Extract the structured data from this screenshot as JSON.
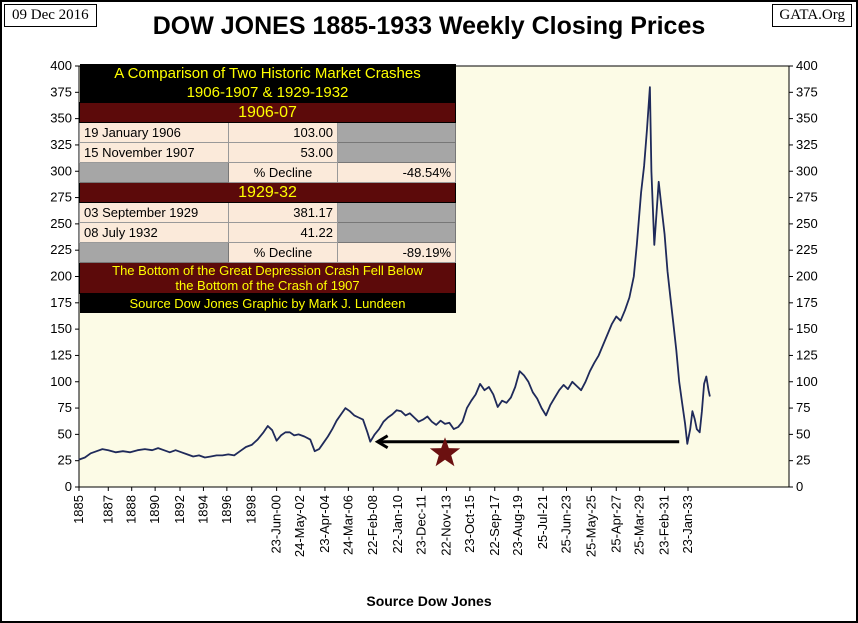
{
  "header": {
    "date": "09 Dec 2016",
    "title": "DOW JONES 1885-1933 Weekly Closing Prices",
    "source": "GATA.Org"
  },
  "panel": {
    "heading_line1": "A Comparison of Two Historic Market Crashes",
    "heading_line2": "1906-1907 & 1929-1932",
    "crash1": {
      "label": "1906-07",
      "row1_date": "19 January 1906",
      "row1_value": "103.00",
      "row2_date": "15 November 1907",
      "row2_value": "53.00",
      "decline_label": "% Decline",
      "decline_value": "-48.54%"
    },
    "crash2": {
      "label": "1929-32",
      "row1_date": "03 September 1929",
      "row1_value": "381.17",
      "row2_date": "08 July 1932",
      "row2_value": "41.22",
      "decline_label": "% Decline",
      "decline_value": "-89.19%"
    },
    "note_line1": "The Bottom of the Great Depression Crash Fell Below",
    "note_line2": "the Bottom of the Crash of 1907",
    "credit": "Source Dow Jones  Graphic by Mark J. Lundeen"
  },
  "chart_data": {
    "type": "line",
    "title": "DOW JONES 1885-1933 Weekly Closing Prices",
    "xlabel": "Source Dow Jones",
    "ylabel": "",
    "ylim": [
      0,
      400
    ],
    "yticks": [
      0,
      25,
      50,
      75,
      100,
      125,
      150,
      175,
      200,
      225,
      250,
      275,
      300,
      325,
      350,
      375,
      400
    ],
    "x_range": [
      1885.0,
      1933.5
    ],
    "x_tick_labels": [
      {
        "label": "1885",
        "x": 1885.0
      },
      {
        "label": "1887",
        "x": 1887.0
      },
      {
        "label": "1888",
        "x": 1888.6
      },
      {
        "label": "1890",
        "x": 1890.2
      },
      {
        "label": "1892",
        "x": 1891.9
      },
      {
        "label": "1894",
        "x": 1893.5
      },
      {
        "label": "1896",
        "x": 1895.1
      },
      {
        "label": "1898",
        "x": 1896.8
      },
      {
        "label": "23-Jun-00",
        "x": 1898.5
      },
      {
        "label": "24-May-02",
        "x": 1900.1
      },
      {
        "label": "23-Apr-04",
        "x": 1901.8
      },
      {
        "label": "24-Mar-06",
        "x": 1903.4
      },
      {
        "label": "22-Feb-08",
        "x": 1905.1
      },
      {
        "label": "22-Jan-10",
        "x": 1906.8
      },
      {
        "label": "23-Dec-11",
        "x": 1908.4
      },
      {
        "label": "22-Nov-13",
        "x": 1910.1
      },
      {
        "label": "23-Oct-15",
        "x": 1911.7
      },
      {
        "label": "22-Sep-17",
        "x": 1913.4
      },
      {
        "label": "23-Aug-19",
        "x": 1915.0
      },
      {
        "label": "25-Jul-21",
        "x": 1916.7
      },
      {
        "label": "25-Jun-23",
        "x": 1918.3
      },
      {
        "label": "25-May-25",
        "x": 1920.0
      },
      {
        "label": "25-Apr-27",
        "x": 1921.7
      },
      {
        "label": "25-Mar-29",
        "x": 1923.3
      },
      {
        "label": "23-Feb-31",
        "x": 1925.0
      },
      {
        "label": "23-Jan-33",
        "x": 1926.6
      }
    ],
    "series": [
      {
        "color": "#1f2a5a",
        "points": [
          [
            1885.0,
            26
          ],
          [
            1885.4,
            28
          ],
          [
            1885.8,
            32
          ],
          [
            1886.2,
            34
          ],
          [
            1886.6,
            36
          ],
          [
            1887.0,
            35
          ],
          [
            1887.5,
            33
          ],
          [
            1888.0,
            34
          ],
          [
            1888.5,
            33
          ],
          [
            1889.0,
            35
          ],
          [
            1889.5,
            36
          ],
          [
            1890.0,
            35
          ],
          [
            1890.4,
            37
          ],
          [
            1890.8,
            35
          ],
          [
            1891.2,
            33
          ],
          [
            1891.6,
            35
          ],
          [
            1892.0,
            33
          ],
          [
            1892.4,
            31
          ],
          [
            1892.8,
            29
          ],
          [
            1893.2,
            30
          ],
          [
            1893.6,
            28
          ],
          [
            1894.0,
            29
          ],
          [
            1894.4,
            30
          ],
          [
            1894.8,
            30
          ],
          [
            1895.2,
            31
          ],
          [
            1895.6,
            30
          ],
          [
            1896.0,
            34
          ],
          [
            1896.4,
            38
          ],
          [
            1896.8,
            40
          ],
          [
            1897.2,
            45
          ],
          [
            1897.6,
            52
          ],
          [
            1897.9,
            58
          ],
          [
            1898.2,
            54
          ],
          [
            1898.5,
            44
          ],
          [
            1898.8,
            49
          ],
          [
            1899.1,
            52
          ],
          [
            1899.4,
            52
          ],
          [
            1899.7,
            49
          ],
          [
            1900.0,
            50
          ],
          [
            1900.4,
            48
          ],
          [
            1900.8,
            45
          ],
          [
            1901.1,
            34
          ],
          [
            1901.4,
            36
          ],
          [
            1901.7,
            42
          ],
          [
            1902.0,
            48
          ],
          [
            1902.3,
            55
          ],
          [
            1902.6,
            63
          ],
          [
            1902.9,
            69
          ],
          [
            1903.2,
            75
          ],
          [
            1903.5,
            72
          ],
          [
            1903.8,
            68
          ],
          [
            1904.1,
            66
          ],
          [
            1904.4,
            64
          ],
          [
            1904.7,
            52
          ],
          [
            1904.9,
            43
          ],
          [
            1905.2,
            50
          ],
          [
            1905.5,
            55
          ],
          [
            1905.8,
            62
          ],
          [
            1906.1,
            66
          ],
          [
            1906.4,
            69
          ],
          [
            1906.7,
            73
          ],
          [
            1907.0,
            72
          ],
          [
            1907.3,
            68
          ],
          [
            1907.6,
            70
          ],
          [
            1907.9,
            66
          ],
          [
            1908.2,
            62
          ],
          [
            1908.5,
            64
          ],
          [
            1908.8,
            67
          ],
          [
            1909.1,
            62
          ],
          [
            1909.4,
            59
          ],
          [
            1909.7,
            63
          ],
          [
            1910.0,
            60
          ],
          [
            1910.3,
            61
          ],
          [
            1910.6,
            55
          ],
          [
            1910.9,
            57
          ],
          [
            1911.2,
            62
          ],
          [
            1911.5,
            75
          ],
          [
            1911.8,
            82
          ],
          [
            1912.1,
            88
          ],
          [
            1912.4,
            98
          ],
          [
            1912.7,
            92
          ],
          [
            1913.0,
            95
          ],
          [
            1913.3,
            88
          ],
          [
            1913.6,
            76
          ],
          [
            1913.9,
            82
          ],
          [
            1914.2,
            80
          ],
          [
            1914.5,
            85
          ],
          [
            1914.8,
            95
          ],
          [
            1915.1,
            110
          ],
          [
            1915.4,
            106
          ],
          [
            1915.7,
            100
          ],
          [
            1916.0,
            90
          ],
          [
            1916.3,
            84
          ],
          [
            1916.6,
            75
          ],
          [
            1916.9,
            68
          ],
          [
            1917.2,
            78
          ],
          [
            1917.5,
            85
          ],
          [
            1917.8,
            92
          ],
          [
            1918.1,
            97
          ],
          [
            1918.4,
            93
          ],
          [
            1918.7,
            100
          ],
          [
            1919.0,
            96
          ],
          [
            1919.3,
            92
          ],
          [
            1919.6,
            100
          ],
          [
            1919.9,
            110
          ],
          [
            1920.2,
            118
          ],
          [
            1920.5,
            125
          ],
          [
            1920.8,
            135
          ],
          [
            1921.1,
            145
          ],
          [
            1921.4,
            155
          ],
          [
            1921.7,
            162
          ],
          [
            1922.0,
            158
          ],
          [
            1922.3,
            168
          ],
          [
            1922.6,
            180
          ],
          [
            1922.9,
            200
          ],
          [
            1923.1,
            230
          ],
          [
            1923.4,
            280
          ],
          [
            1923.6,
            305
          ],
          [
            1923.8,
            340
          ],
          [
            1924.0,
            380
          ],
          [
            1924.1,
            300
          ],
          [
            1924.3,
            230
          ],
          [
            1924.45,
            260
          ],
          [
            1924.6,
            290
          ],
          [
            1924.8,
            265
          ],
          [
            1925.0,
            240
          ],
          [
            1925.2,
            205
          ],
          [
            1925.4,
            180
          ],
          [
            1925.6,
            155
          ],
          [
            1925.8,
            130
          ],
          [
            1926.0,
            100
          ],
          [
            1926.2,
            80
          ],
          [
            1926.4,
            60
          ],
          [
            1926.55,
            41
          ],
          [
            1926.75,
            55
          ],
          [
            1926.9,
            72
          ],
          [
            1927.05,
            65
          ],
          [
            1927.2,
            55
          ],
          [
            1927.4,
            52
          ],
          [
            1927.55,
            72
          ],
          [
            1927.7,
            98
          ],
          [
            1927.85,
            105
          ],
          [
            1928.0,
            92
          ],
          [
            1928.1,
            86
          ]
        ]
      }
    ],
    "annotations": [
      {
        "type": "arrow",
        "x_from": 1926.0,
        "x_to": 1905.4,
        "y": 43
      },
      {
        "type": "star",
        "x": 1910.0,
        "y": 32,
        "color": "#6b1010"
      }
    ]
  }
}
